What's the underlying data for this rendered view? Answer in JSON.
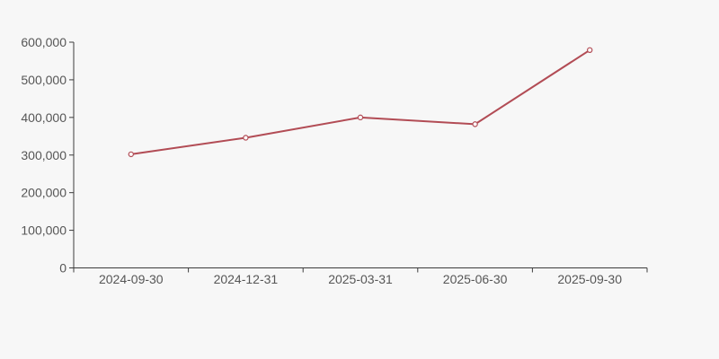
{
  "chart_data": {
    "type": "line",
    "title": "",
    "xlabel": "",
    "ylabel": "",
    "categories": [
      "2024-09-30",
      "2024-12-31",
      "2025-03-31",
      "2025-06-30",
      "2025-09-30"
    ],
    "series": [
      {
        "name": "value",
        "values": [
          302000,
          346000,
          400000,
          382000,
          579000
        ]
      }
    ],
    "ylim": [
      0,
      600000
    ],
    "y_tick_interval": 100000,
    "y_tick_labels": [
      "0",
      "100,000",
      "200,000",
      "300,000",
      "400,000",
      "500,000",
      "600,000"
    ],
    "grid": false,
    "legend_position": "none",
    "marker_style": "open-circle",
    "colors": {
      "background": "#f7f7f7",
      "line": "#b24c55",
      "marker_fill": "#fbfbfb",
      "axis": "#3d3d3d",
      "tick_label": "#565656"
    }
  }
}
